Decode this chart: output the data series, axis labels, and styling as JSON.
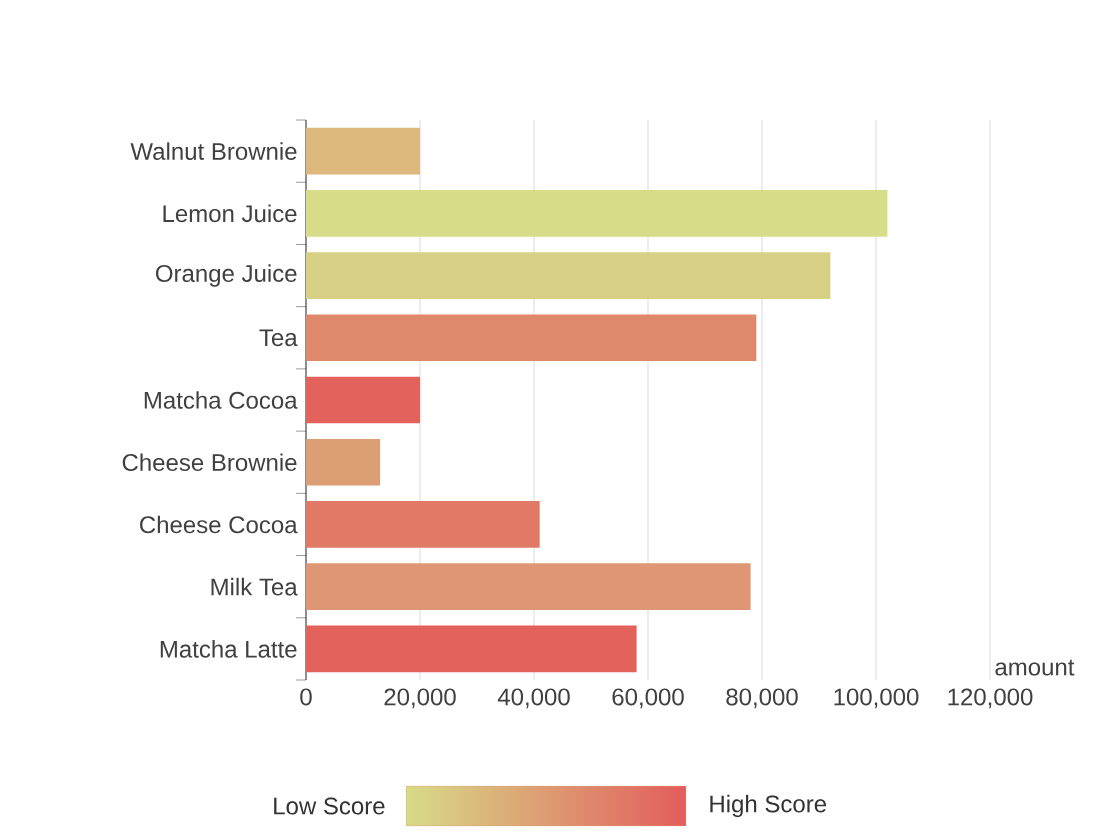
{
  "chart_data": {
    "type": "bar",
    "orientation": "horizontal",
    "xlabel": "amount",
    "categories": [
      "Walnut Brownie",
      "Lemon Juice",
      "Orange Juice",
      "Tea",
      "Matcha Cocoa",
      "Cheese Brownie",
      "Cheese Cocoa",
      "Milk Tea",
      "Matcha Latte"
    ],
    "values": [
      20000,
      102000,
      92000,
      79000,
      20000,
      13000,
      41000,
      78000,
      58000
    ],
    "colors": [
      "#dcb87c",
      "#d6dc88",
      "#d8d084",
      "#e0886c",
      "#e3625c",
      "#dc9e74",
      "#e07a66",
      "#de9674",
      "#e3625c"
    ],
    "xlim": [
      0,
      120000
    ],
    "xticks": [
      0,
      {
        "value": 20000,
        "label": "20,000"
      },
      {
        "value": 40000,
        "label": "40,000"
      },
      {
        "value": 60000,
        "label": "60,000"
      },
      {
        "value": 80000,
        "label": "80,000"
      },
      {
        "value": 100000,
        "label": "100,000"
      },
      {
        "value": 120000,
        "label": "120,000"
      }
    ],
    "grid": "x",
    "annotations": [
      "Low Score",
      "High Score"
    ]
  }
}
